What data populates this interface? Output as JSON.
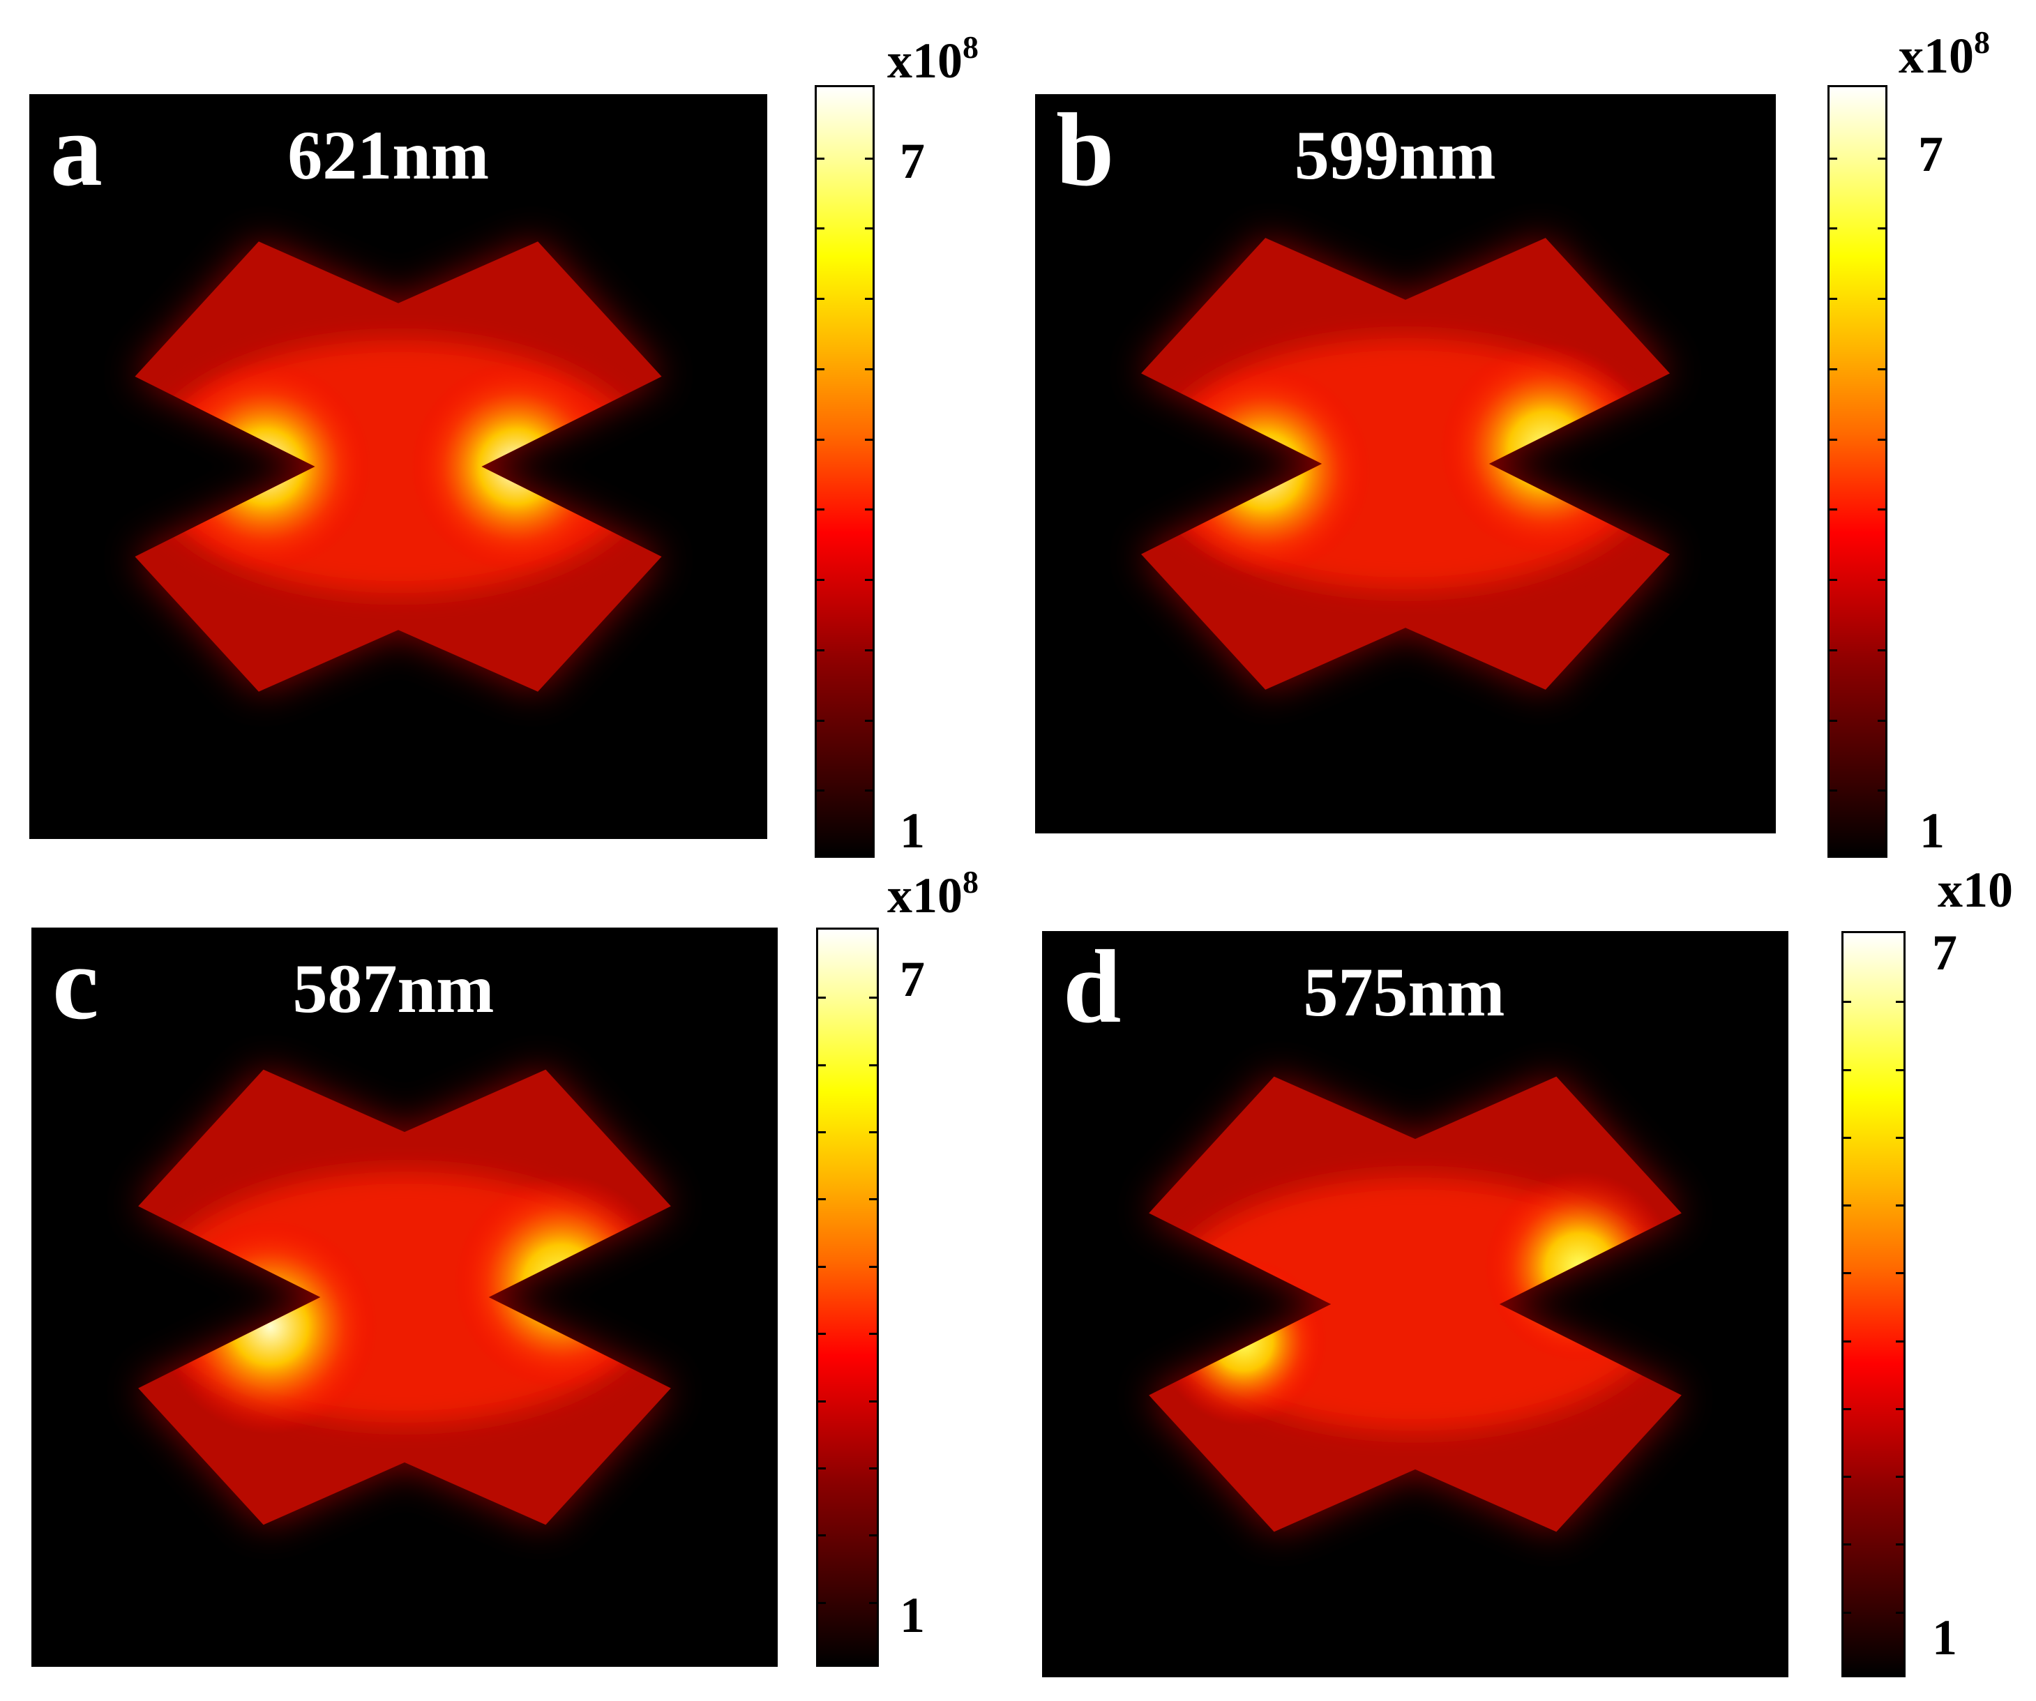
{
  "figure": {
    "panels": [
      {
        "letter": "a",
        "wavelength": "621nm",
        "colorbar": {
          "exponent_base": "x10",
          "exponent": "8",
          "max_label": "7",
          "min_label": "1"
        }
      },
      {
        "letter": "b",
        "wavelength": "599nm",
        "colorbar": {
          "exponent_base": "x10",
          "exponent": "8",
          "max_label": "7",
          "min_label": "1"
        }
      },
      {
        "letter": "c",
        "wavelength": "587nm",
        "colorbar": {
          "exponent_base": "x10",
          "exponent": "8",
          "max_label": "7",
          "min_label": "1"
        }
      },
      {
        "letter": "d",
        "wavelength": "575nm",
        "colorbar": {
          "exponent_base": "x10",
          "exponent": "",
          "max_label": "7",
          "min_label": "1"
        }
      }
    ],
    "colormap": [
      "#000000",
      "#8c0000",
      "#ff0000",
      "#ff8c00",
      "#ffff00",
      "#ffffff"
    ]
  }
}
